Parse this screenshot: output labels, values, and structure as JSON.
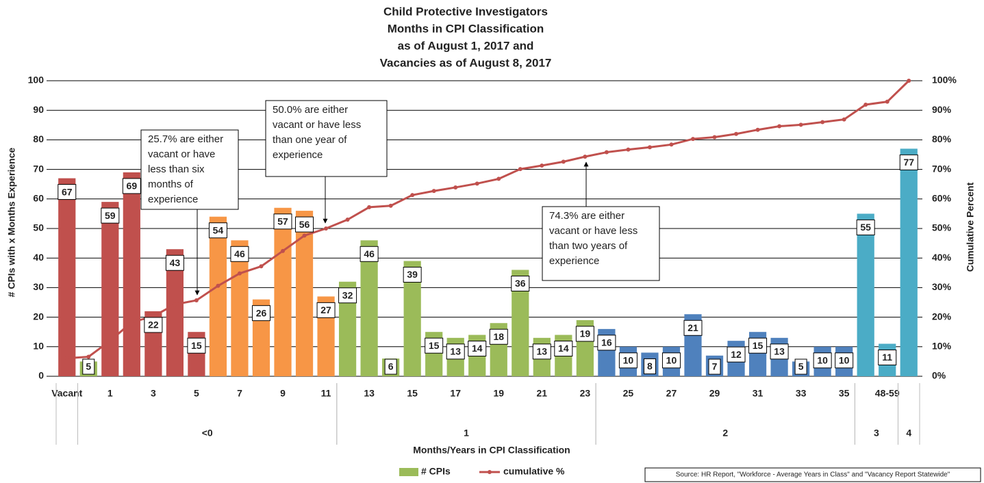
{
  "chart_data": {
    "type": "bar",
    "title": [
      "Child Protective Investigators",
      "Months in CPI Classification",
      "as of August 1, 2017 and",
      "Vacancies as of August 8, 2017"
    ],
    "x_label": "Months/Years in CPI Classification",
    "y_label": "# CPIs with x Months Experience",
    "y2_label": "Cumulative Percent",
    "categories": [
      "Vacant",
      null,
      "1",
      null,
      "3",
      null,
      "5",
      null,
      "7",
      null,
      "9",
      null,
      "11",
      null,
      "13",
      null,
      "15",
      null,
      "17",
      null,
      "19",
      null,
      "21",
      null,
      "23",
      null,
      "25",
      null,
      "27",
      null,
      "29",
      null,
      "31",
      null,
      "33",
      null,
      "35",
      null,
      "48-59",
      null
    ],
    "groups": [
      {
        "label": "<0",
        "from": 1,
        "to": 12
      },
      {
        "label": "1",
        "from": 13,
        "to": 24
      },
      {
        "label": "2",
        "from": 25,
        "to": 36
      },
      {
        "label": "3",
        "from": 37,
        "to": 38
      },
      {
        "label": "4",
        "from": 39,
        "to": 39
      }
    ],
    "series": [
      {
        "name": "# CPIs",
        "color": "#9bbb59",
        "colors": [
          "#c0504d",
          "#9bbb59",
          "#c0504d",
          "#c0504d",
          "#c0504d",
          "#c0504d",
          "#c0504d",
          "#f79646",
          "#f79646",
          "#f79646",
          "#f79646",
          "#f79646",
          "#f79646",
          "#9bbb59",
          "#9bbb59",
          "#9bbb59",
          "#9bbb59",
          "#9bbb59",
          "#9bbb59",
          "#9bbb59",
          "#9bbb59",
          "#9bbb59",
          "#9bbb59",
          "#9bbb59",
          "#9bbb59",
          "#4f81bd",
          "#4f81bd",
          "#4f81bd",
          "#4f81bd",
          "#4f81bd",
          "#4f81bd",
          "#4f81bd",
          "#4f81bd",
          "#4f81bd",
          "#4f81bd",
          "#4f81bd",
          "#4f81bd",
          "#4bacc6",
          "#4bacc6",
          "#4bacc6"
        ],
        "values": [
          67,
          5,
          59,
          69,
          22,
          43,
          15,
          54,
          46,
          26,
          57,
          56,
          27,
          32,
          46,
          6,
          39,
          15,
          13,
          14,
          18,
          36,
          13,
          14,
          19,
          16,
          10,
          8,
          10,
          21,
          7,
          12,
          15,
          13,
          5,
          10,
          10,
          55,
          11,
          77
        ]
      },
      {
        "name": "cumulative %",
        "color": "#c0504d",
        "axis": "y2",
        "type": "line",
        "values": [
          6.1,
          6.6,
          12.0,
          18.3,
          20.3,
          24.3,
          25.7,
          30.6,
          34.8,
          37.2,
          42.4,
          47.6,
          50.0,
          53.0,
          57.2,
          57.7,
          61.3,
          62.7,
          63.9,
          65.2,
          66.8,
          70.1,
          71.3,
          72.6,
          74.3,
          75.8,
          76.7,
          77.5,
          78.4,
          80.3,
          80.9,
          82.0,
          83.4,
          84.6,
          85.1,
          86.0,
          86.9,
          91.9,
          92.9,
          100
        ]
      }
    ],
    "ylim": [
      0,
      100
    ],
    "yticks": [
      0,
      10,
      20,
      30,
      40,
      50,
      60,
      70,
      80,
      90,
      100
    ],
    "y2lim": [
      0,
      100
    ],
    "y2ticks": [
      {
        "value": 0,
        "label": "0%"
      },
      {
        "value": 10,
        "label": "10%"
      },
      {
        "value": 20,
        "label": "20%"
      },
      {
        "value": 30,
        "label": "30%"
      },
      {
        "value": 40,
        "label": "40%"
      },
      {
        "value": 50,
        "label": "50%"
      },
      {
        "value": 60,
        "label": "60%"
      },
      {
        "value": 70,
        "label": "70%"
      },
      {
        "value": 80,
        "label": "80%"
      },
      {
        "value": 90,
        "label": "90%"
      },
      {
        "value": 100,
        "label": "100%"
      }
    ],
    "grid": true,
    "annotations": [
      {
        "lines": [
          "25.7% are either",
          "vacant or have",
          "less than six",
          "months  of",
          "experience"
        ],
        "point": 6
      },
      {
        "lines": [
          "50.0% are either",
          "vacant or have less",
          "than one year of",
          "experience"
        ],
        "point": 12
      },
      {
        "lines": [
          "74.3% are either",
          "vacant or have less",
          "than two years of",
          "experience"
        ],
        "point": 24
      }
    ],
    "source": "Source: HR Report, \"Workforce - Average Years in Class\" and \"Vacancy Report Statewide\""
  }
}
